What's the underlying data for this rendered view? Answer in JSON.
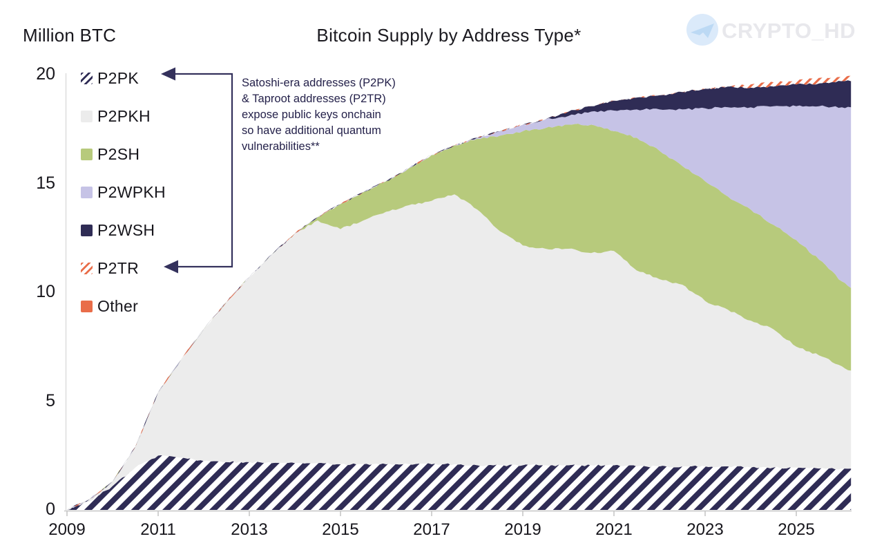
{
  "header": {
    "y_axis_title": "Million BTC",
    "title": "Bitcoin Supply by Address Type*",
    "watermark": "CRYPTO_HD",
    "watermark_icon": "telegram-paper-plane-icon"
  },
  "annotation": {
    "lines": [
      "Satoshi-era addresses (P2PK)",
      "& Taproot addresses (P2TR)",
      "expose public keys onchain",
      "so have additional quantum",
      "vulnerabilities**"
    ]
  },
  "colors": {
    "accent_navy": "#2f2c55",
    "area_gray": "#ececec",
    "area_green": "#b7ca7c",
    "area_lavender": "#c6c3e6",
    "accent_orange": "#e96d49",
    "axis_gray": "#c6c6c6",
    "callout_arrow": "#34315c",
    "watermark_text": "#e8e8ec",
    "watermark_circle": "#dbeafa",
    "watermark_plane": "#bcd9f4"
  },
  "legend": {
    "items": [
      {
        "label": "P2PK",
        "color": "#2f2c55",
        "hatch": true
      },
      {
        "label": "P2PKH",
        "color": "#ececec",
        "hatch": false
      },
      {
        "label": "P2SH",
        "color": "#b7ca7c",
        "hatch": false
      },
      {
        "label": "P2WPKH",
        "color": "#c6c3e6",
        "hatch": false
      },
      {
        "label": "P2WSH",
        "color": "#2f2c55",
        "hatch": false
      },
      {
        "label": "P2TR",
        "color": "#e96d49",
        "hatch": true
      },
      {
        "label": "Other",
        "color": "#e96d49",
        "hatch": false
      }
    ]
  },
  "chart_data": {
    "type": "area",
    "stacked": true,
    "title": "Bitcoin Supply by Address Type*",
    "ylabel": "Million BTC",
    "xlabel": "",
    "grid": false,
    "legend_position": "upper-left",
    "xlim": [
      2009,
      2026.2
    ],
    "ylim": [
      0,
      20
    ],
    "xticks": [
      2009,
      2011,
      2013,
      2015,
      2017,
      2019,
      2021,
      2023,
      2025
    ],
    "yticks": [
      0,
      5,
      10,
      15,
      20
    ],
    "x": [
      2009,
      2009.5,
      2010,
      2010.5,
      2011,
      2011.5,
      2012,
      2012.5,
      2013,
      2013.5,
      2014,
      2014.5,
      2015,
      2015.5,
      2016,
      2016.5,
      2017,
      2017.5,
      2018,
      2018.5,
      2019,
      2019.5,
      2020,
      2020.5,
      2021,
      2021.5,
      2022,
      2022.5,
      2023,
      2023.5,
      2024,
      2024.5,
      2025,
      2025.5,
      2026,
      2026.2
    ],
    "series": [
      {
        "name": "P2PK",
        "color": "#2f2c55",
        "pattern": "hatch-navy",
        "values": [
          0,
          0.4,
          1.1,
          1.95,
          2.5,
          2.4,
          2.25,
          2.2,
          2.2,
          2.15,
          2.15,
          2.15,
          2.1,
          2.1,
          2.1,
          2.1,
          2.1,
          2.1,
          2.05,
          2.05,
          2.05,
          2.05,
          2.05,
          2.05,
          2.05,
          2.0,
          2.0,
          2.0,
          2.0,
          2.0,
          1.95,
          1.95,
          1.95,
          1.9,
          1.9,
          1.9
        ]
      },
      {
        "name": "P2PKH",
        "color": "#ececec",
        "pattern": null,
        "values": [
          0,
          0.1,
          0.2,
          0.95,
          2.9,
          4.5,
          6.05,
          7.35,
          8.5,
          9.6,
          10.55,
          11.15,
          10.8,
          11.2,
          11.6,
          11.9,
          12.1,
          12.4,
          11.75,
          10.75,
          10.1,
          9.95,
          9.95,
          9.75,
          9.85,
          9.0,
          8.6,
          8.35,
          7.6,
          7.2,
          6.75,
          6.35,
          5.55,
          5.2,
          4.7,
          4.5
        ]
      },
      {
        "name": "P2SH",
        "color": "#b7ca7c",
        "pattern": null,
        "values": [
          0,
          0,
          0,
          0,
          0,
          0,
          0,
          0,
          0,
          0,
          0,
          0.15,
          1.15,
          1.3,
          1.4,
          1.7,
          2.1,
          2.25,
          3.25,
          4.4,
          5.25,
          5.55,
          5.7,
          5.9,
          5.5,
          6.1,
          5.9,
          5.45,
          5.5,
          5.2,
          5.1,
          4.8,
          4.9,
          4.4,
          3.9,
          3.8
        ]
      },
      {
        "name": "P2WPKH",
        "color": "#c6c3e6",
        "pattern": null,
        "values": [
          0,
          0,
          0,
          0,
          0,
          0,
          0,
          0,
          0,
          0,
          0,
          0,
          0,
          0,
          0,
          0,
          0,
          0,
          0.05,
          0.2,
          0.3,
          0.4,
          0.4,
          0.6,
          0.95,
          1.3,
          1.9,
          2.6,
          3.35,
          4.1,
          4.7,
          5.45,
          6.15,
          7.05,
          8.0,
          8.3
        ]
      },
      {
        "name": "P2WSH",
        "color": "#2f2c55",
        "pattern": null,
        "values": [
          0,
          0,
          0,
          0,
          0,
          0,
          0,
          0,
          0,
          0,
          0,
          0,
          0,
          0,
          0,
          0,
          0,
          0,
          0,
          0,
          0,
          0,
          0.2,
          0.25,
          0.45,
          0.55,
          0.65,
          0.8,
          0.9,
          0.95,
          0.9,
          0.9,
          1.0,
          1.05,
          1.2,
          1.2
        ]
      },
      {
        "name": "P2TR",
        "color": "#e96d49",
        "pattern": "hatch-orange",
        "values": [
          0,
          0,
          0,
          0,
          0,
          0,
          0,
          0,
          0,
          0,
          0,
          0,
          0,
          0,
          0,
          0,
          0,
          0,
          0,
          0,
          0,
          0,
          0,
          0,
          0,
          0,
          0,
          0,
          0,
          0,
          0.15,
          0.2,
          0.2,
          0.25,
          0.2,
          0.25
        ]
      },
      {
        "name": "Other",
        "color": "#e96d49",
        "pattern": null,
        "values": [
          0,
          0,
          0,
          0,
          0,
          0,
          0,
          0,
          0,
          0,
          0,
          0,
          0,
          0,
          0,
          0,
          0,
          0,
          0,
          0,
          0,
          0,
          0,
          0,
          0,
          0,
          0,
          0,
          0,
          0,
          0,
          0,
          0,
          0,
          0,
          0
        ]
      }
    ]
  }
}
